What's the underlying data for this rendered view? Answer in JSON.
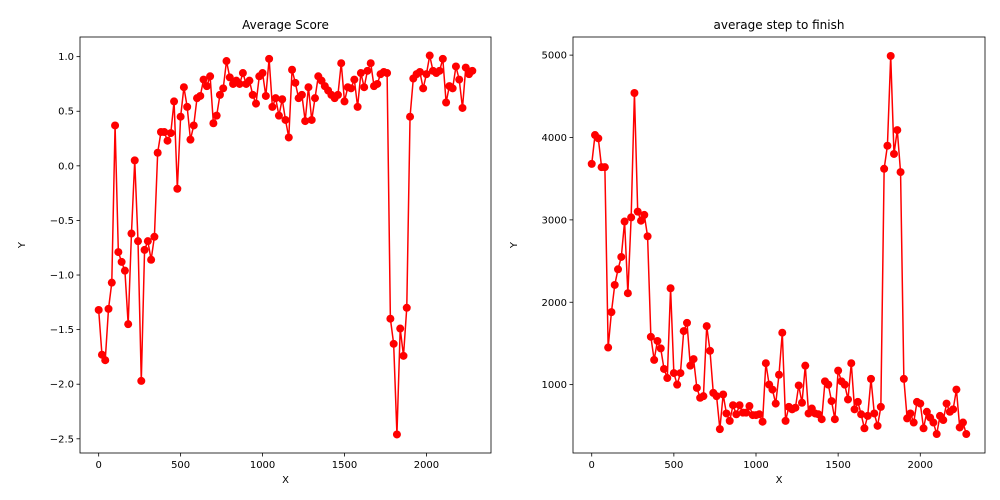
{
  "chart_data": [
    {
      "type": "line",
      "title": "Average Score",
      "xlabel": "X",
      "ylabel": "Y",
      "x": [
        0,
        20,
        40,
        60,
        80,
        100,
        120,
        140,
        160,
        180,
        200,
        220,
        240,
        260,
        280,
        300,
        320,
        340,
        360,
        380,
        400,
        420,
        440,
        460,
        480,
        500,
        520,
        540,
        560,
        580,
        600,
        620,
        640,
        660,
        680,
        700,
        720,
        740,
        760,
        780,
        800,
        820,
        840,
        860,
        880,
        900,
        920,
        940,
        960,
        980,
        1000,
        1020,
        1040,
        1060,
        1080,
        1100,
        1120,
        1140,
        1160,
        1180,
        1200,
        1220,
        1240,
        1260,
        1280,
        1300,
        1320,
        1340,
        1360,
        1380,
        1400,
        1420,
        1440,
        1460,
        1480,
        1500,
        1520,
        1540,
        1560,
        1580,
        1600,
        1620,
        1640,
        1660,
        1680,
        1700,
        1720,
        1740,
        1760,
        1780,
        1800,
        1820,
        1840,
        1860,
        1880,
        1900,
        1920,
        1940,
        1960,
        1980,
        2000,
        2020,
        2040,
        2060,
        2080,
        2100,
        2120,
        2140,
        2160,
        2180,
        2200,
        2220,
        2240,
        2260,
        2280
      ],
      "series": [
        {
          "name": null,
          "color": "#ff0000",
          "values": [
            -1.32,
            -1.73,
            -1.78,
            -1.31,
            -1.07,
            0.37,
            -0.79,
            -0.88,
            -0.96,
            -1.45,
            -0.62,
            0.05,
            -0.69,
            -1.97,
            -0.77,
            -0.69,
            -0.86,
            -0.65,
            0.12,
            0.31,
            0.31,
            0.23,
            0.3,
            0.59,
            -0.21,
            0.45,
            0.72,
            0.54,
            0.24,
            0.37,
            0.62,
            0.64,
            0.79,
            0.73,
            0.82,
            0.39,
            0.46,
            0.65,
            0.71,
            0.96,
            0.81,
            0.75,
            0.78,
            0.75,
            0.85,
            0.75,
            0.78,
            0.65,
            0.57,
            0.82,
            0.85,
            0.64,
            0.98,
            0.54,
            0.62,
            0.46,
            0.61,
            0.42,
            0.26,
            0.88,
            0.76,
            0.62,
            0.65,
            0.41,
            0.72,
            0.42,
            0.62,
            0.82,
            0.78,
            0.73,
            0.69,
            0.65,
            0.62,
            0.65,
            0.94,
            0.59,
            0.72,
            0.71,
            0.79,
            0.54,
            0.85,
            0.72,
            0.87,
            0.94,
            0.73,
            0.75,
            0.84,
            0.86,
            0.85,
            -1.4,
            -1.63,
            -2.46,
            -1.49,
            -1.74,
            -1.3,
            0.45,
            0.8,
            0.84,
            0.86,
            0.71,
            0.84,
            1.01,
            0.87,
            0.85,
            0.87,
            0.98,
            0.58,
            0.73,
            0.71,
            0.91,
            0.79,
            0.53,
            0.9,
            0.84,
            0.87
          ]
        }
      ],
      "xlim": [
        -114,
        2394
      ],
      "xticks": [
        0,
        500,
        1000,
        1500,
        2000
      ],
      "ylim": [
        -2.63,
        1.18
      ],
      "yticks": [
        {
          "value": -2.5,
          "label": "−2.5"
        },
        {
          "value": -2.0,
          "label": "−2.0"
        },
        {
          "value": -1.5,
          "label": "−1.5"
        },
        {
          "value": -1.0,
          "label": "−1.0"
        },
        {
          "value": -0.5,
          "label": "−0.5"
        },
        {
          "value": 0.0,
          "label": "0.0"
        },
        {
          "value": 0.5,
          "label": "0.5"
        },
        {
          "value": 1.0,
          "label": "1.0"
        }
      ],
      "marker": "circle",
      "grid": false
    },
    {
      "type": "line",
      "title": "average step to finish",
      "xlabel": "X",
      "ylabel": "Y",
      "x": [
        0,
        20,
        40,
        60,
        80,
        100,
        120,
        140,
        160,
        180,
        200,
        220,
        240,
        260,
        280,
        300,
        320,
        340,
        360,
        380,
        400,
        420,
        440,
        460,
        480,
        500,
        520,
        540,
        560,
        580,
        600,
        620,
        640,
        660,
        680,
        700,
        720,
        740,
        760,
        780,
        800,
        820,
        840,
        860,
        880,
        900,
        920,
        940,
        960,
        980,
        1000,
        1020,
        1040,
        1060,
        1080,
        1100,
        1120,
        1140,
        1160,
        1180,
        1200,
        1220,
        1240,
        1260,
        1280,
        1300,
        1320,
        1340,
        1360,
        1380,
        1400,
        1420,
        1440,
        1460,
        1480,
        1500,
        1520,
        1540,
        1560,
        1580,
        1600,
        1620,
        1640,
        1660,
        1680,
        1700,
        1720,
        1740,
        1760,
        1780,
        1800,
        1820,
        1840,
        1860,
        1880,
        1900,
        1920,
        1940,
        1960,
        1980,
        2000,
        2020,
        2040,
        2060,
        2080,
        2100,
        2120,
        2140,
        2160,
        2180,
        2200,
        2220,
        2240,
        2260,
        2280
      ],
      "series": [
        {
          "name": null,
          "color": "#ff0000",
          "values": [
            3680,
            4030,
            3990,
            3640,
            3640,
            1450,
            1880,
            2210,
            2400,
            2550,
            2980,
            2110,
            3030,
            4540,
            3100,
            2990,
            3060,
            2800,
            1580,
            1300,
            1530,
            1440,
            1190,
            1080,
            2170,
            1140,
            1000,
            1140,
            1650,
            1750,
            1230,
            1310,
            960,
            840,
            860,
            1710,
            1410,
            900,
            860,
            460,
            880,
            650,
            560,
            750,
            640,
            750,
            660,
            660,
            740,
            630,
            630,
            640,
            550,
            1260,
            1000,
            940,
            770,
            1120,
            1630,
            560,
            730,
            700,
            720,
            990,
            780,
            1230,
            650,
            710,
            650,
            640,
            580,
            1040,
            1000,
            800,
            580,
            1170,
            1040,
            1000,
            820,
            1260,
            700,
            790,
            640,
            470,
            620,
            1070,
            650,
            500,
            730,
            3620,
            3900,
            4990,
            3800,
            4090,
            3580,
            1070,
            590,
            650,
            540,
            790,
            770,
            470,
            670,
            600,
            540,
            400,
            620,
            570,
            770,
            670,
            700,
            940,
            480,
            540,
            400
          ]
        }
      ],
      "xlim": [
        -114,
        2394
      ],
      "xticks": [
        0,
        500,
        1000,
        1500,
        2000
      ],
      "ylim": [
        170,
        5220
      ],
      "yticks": [
        1000,
        2000,
        3000,
        4000,
        5000
      ],
      "marker": "circle",
      "grid": false
    }
  ]
}
